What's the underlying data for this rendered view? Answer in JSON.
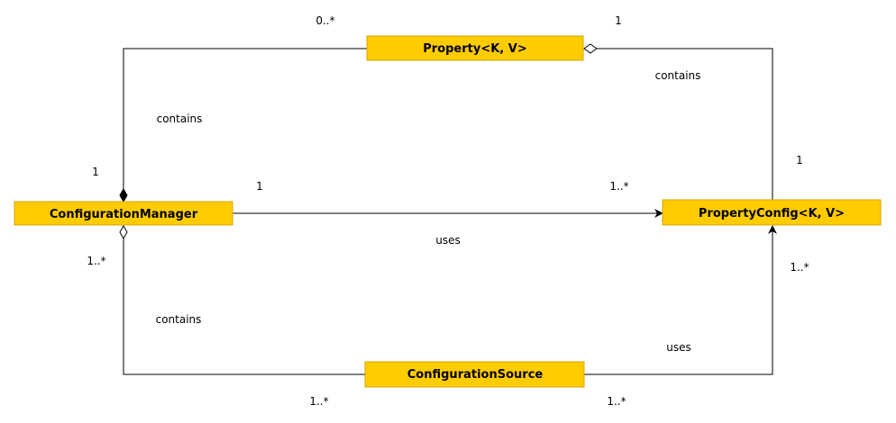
{
  "diagram": {
    "colors": {
      "class_fill": "#ffcc00",
      "class_border": "#d6a600",
      "line": "#000000",
      "background": "#ffffff"
    },
    "classes": {
      "property": "Property<K, V>",
      "config_manager": "ConfigurationManager",
      "property_config": "PropertyConfig<K, V>",
      "config_source": "ConfigurationSource"
    },
    "relations": {
      "manager_property": {
        "label": "contains",
        "mult_manager": "1",
        "mult_property": "0..*"
      },
      "config_property": {
        "label": "contains",
        "mult_config": "1",
        "mult_property": "1"
      },
      "manager_config": {
        "label": "uses",
        "mult_manager": "1",
        "mult_config": "1..*"
      },
      "manager_source": {
        "label": "contains",
        "mult_manager": "1..*",
        "mult_source": "1..*"
      },
      "source_config": {
        "label": "uses",
        "mult_source": "1..*",
        "mult_config": "1..*"
      }
    }
  }
}
